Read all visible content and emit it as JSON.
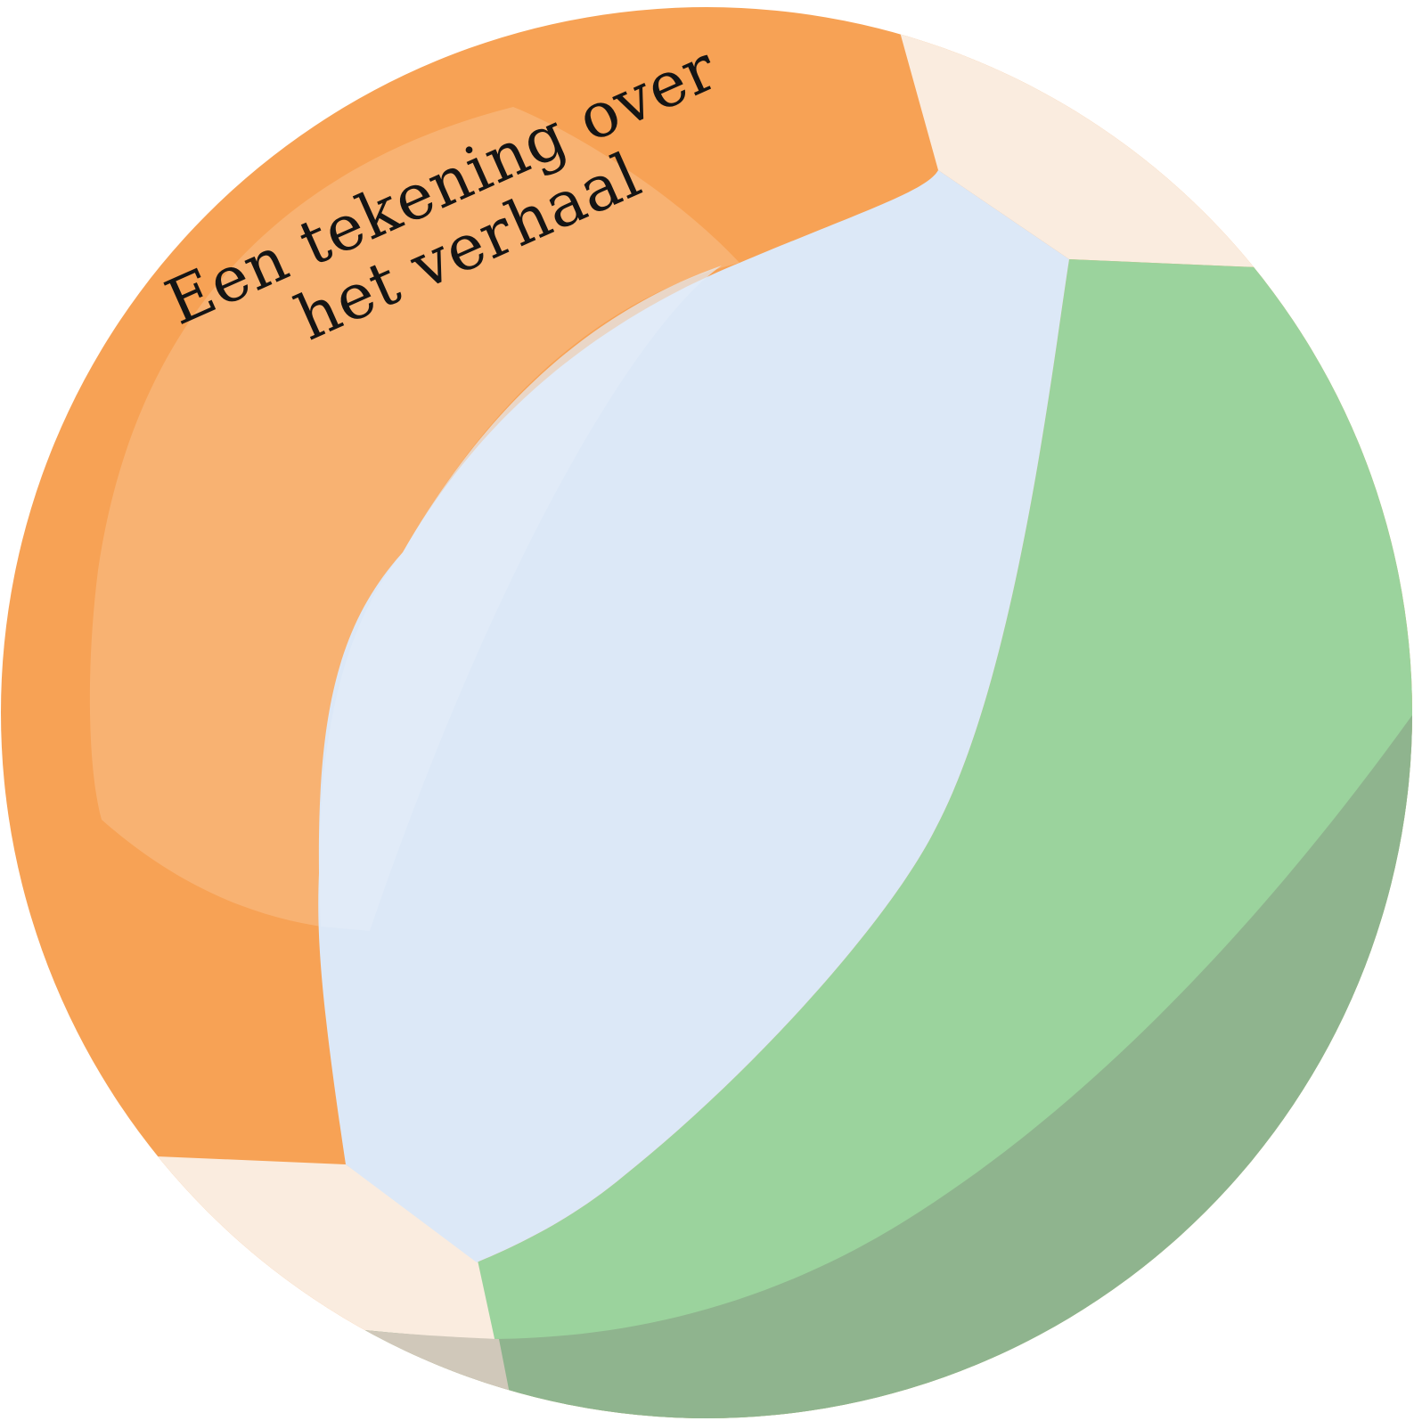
{
  "label": {
    "line1": "Een tekening over",
    "line2": "het verhaal"
  },
  "colors": {
    "orange": "#F7A255",
    "orange_light": "#F8B272",
    "cream": "#FAECDF",
    "blue": "#DCE8F7",
    "blue_light": "#E3ECF8",
    "green": "#9BD39D",
    "green_shadow": "#8FB48E",
    "cream_shadow": "#D0C8BA",
    "text": "#141414"
  }
}
